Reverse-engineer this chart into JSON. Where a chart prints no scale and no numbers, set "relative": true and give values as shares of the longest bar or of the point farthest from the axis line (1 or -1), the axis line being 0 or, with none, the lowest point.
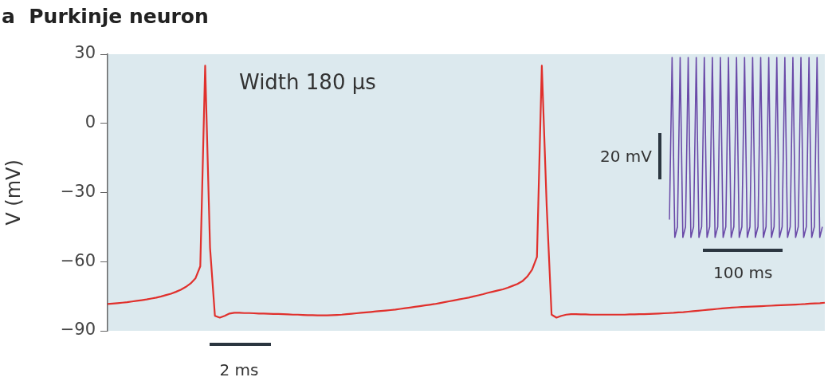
{
  "chart_data": [
    {
      "type": "line",
      "title": "a  Purkinje neuron",
      "ylabel": "V (mV)",
      "categories": [
        null,
        null,
        null,
        null,
        null,
        null,
        null,
        null,
        null,
        null,
        null,
        null,
        null,
        null,
        null,
        null,
        null,
        null,
        null,
        null,
        null,
        null,
        null,
        null,
        null,
        null,
        null,
        null,
        null,
        null,
        null,
        null,
        null,
        null,
        null,
        null,
        null,
        null,
        null,
        null,
        null,
        null,
        null,
        null,
        null,
        null,
        null,
        null,
        null,
        null,
        null,
        null,
        null,
        null,
        null,
        null,
        null,
        null,
        null,
        null,
        null,
        null,
        null,
        null,
        null,
        null,
        null,
        null,
        null,
        null,
        null,
        null,
        null,
        null,
        null,
        null,
        null,
        null,
        null,
        null,
        null,
        null,
        null,
        null,
        null,
        null,
        null,
        null,
        null,
        null,
        null,
        null,
        null,
        null,
        null,
        null,
        null,
        null,
        null,
        null,
        null,
        null,
        null,
        null,
        null,
        null,
        null,
        null,
        null,
        null,
        null,
        null,
        null,
        null,
        null,
        null,
        null,
        null,
        null,
        null,
        null,
        null,
        null,
        null,
        null,
        null,
        null,
        null,
        null,
        null,
        null,
        null,
        null,
        null,
        null,
        null,
        null,
        null,
        null,
        null,
        null,
        null,
        null,
        null,
        null,
        null,
        null,
        null
      ],
      "series": [
        {
          "color": "#e0302c",
          "values": [
            -78.4,
            -78.2,
            -78.0,
            -77.8,
            -77.6,
            -77.3,
            -77.0,
            -76.7,
            -76.4,
            -76.0,
            -75.6,
            -75.1,
            -74.5,
            -73.9,
            -73.1,
            -72.2,
            -71.0,
            -69.5,
            -67.3,
            -62,
            25,
            -54,
            -83.5,
            -84.3,
            -83.5,
            -82.5,
            -82.2,
            -82.2,
            -82.3,
            -82.3,
            -82.4,
            -82.5,
            -82.5,
            -82.6,
            -82.7,
            -82.7,
            -82.8,
            -82.9,
            -83,
            -83,
            -83.1,
            -83.2,
            -83.2,
            -83.3,
            -83.3,
            -83.3,
            -83.2,
            -83.1,
            -83,
            -82.8,
            -82.6,
            -82.4,
            -82.2,
            -82,
            -81.8,
            -81.6,
            -81.4,
            -81.2,
            -81,
            -80.8,
            -80.5,
            -80.2,
            -79.9,
            -79.6,
            -79.3,
            -79,
            -78.7,
            -78.4,
            -78.0,
            -77.6,
            -77.2,
            -76.8,
            -76.4,
            -76.0,
            -75.6,
            -75.1,
            -74.6,
            -74.1,
            -73.5,
            -73.0,
            -72.5,
            -72.0,
            -71.3,
            -70.5,
            -69.7,
            -68.5,
            -66.5,
            -63.5,
            -58,
            25,
            -36,
            -83,
            -84.3,
            -83.5,
            -83,
            -82.8,
            -82.8,
            -82.9,
            -82.9,
            -83,
            -83,
            -83,
            -83,
            -83,
            -83,
            -83,
            -83,
            -82.9,
            -82.9,
            -82.8,
            -82.8,
            -82.7,
            -82.6,
            -82.5,
            -82.4,
            -82.3,
            -82.2,
            -82,
            -81.9,
            -81.7,
            -81.5,
            -81.3,
            -81.1,
            -80.9,
            -80.7,
            -80.5,
            -80.3,
            -80.1,
            -79.9,
            -79.8,
            -79.7,
            -79.6,
            -79.5,
            -79.4,
            -79.3,
            -79.2,
            -79.1,
            -79.0,
            -78.9,
            -78.8,
            -78.7,
            -78.6,
            -78.5,
            -78.4,
            -78.2,
            -78.1,
            -78.0,
            -77.8
          ]
        }
      ],
      "ylim": [
        -90,
        30
      ],
      "yticks": [
        30,
        0,
        -30,
        -60,
        -90
      ],
      "marker": "none",
      "annotations": [
        "Width 180 µs",
        "2 ms"
      ]
    },
    {
      "type": "line",
      "relative": true,
      "categories": [
        null,
        null,
        null,
        null,
        null,
        null,
        null,
        null,
        null,
        null,
        null,
        null,
        null,
        null,
        null,
        null,
        null,
        null,
        null,
        null,
        null,
        null,
        null,
        null,
        null,
        null,
        null,
        null,
        null,
        null,
        null,
        null,
        null,
        null,
        null,
        null,
        null,
        null,
        null,
        null,
        null,
        null,
        null,
        null,
        null,
        null,
        null,
        null,
        null,
        null,
        null,
        null,
        null,
        null,
        null,
        null,
        null,
        null
      ],
      "series": [
        {
          "color": "#6a4aa8",
          "values": [
            0.1,
            1,
            0,
            0.06,
            1,
            0,
            0.06,
            1,
            0,
            0.06,
            1,
            0,
            0.06,
            1,
            0,
            0.06,
            1,
            0,
            0.06,
            1,
            0,
            0.06,
            1,
            0,
            0.06,
            1,
            0,
            0.06,
            1,
            0,
            0.06,
            1,
            0,
            0.06,
            1,
            0,
            0.06,
            1,
            0,
            0.06,
            1,
            0,
            0.06,
            1,
            0,
            0.06,
            1,
            0,
            0.06,
            1,
            0,
            0.06,
            1,
            0,
            0.06,
            1,
            0,
            0.06
          ]
        }
      ],
      "marker": "none",
      "annotations": [
        "20 mV",
        "100 ms"
      ]
    }
  ]
}
